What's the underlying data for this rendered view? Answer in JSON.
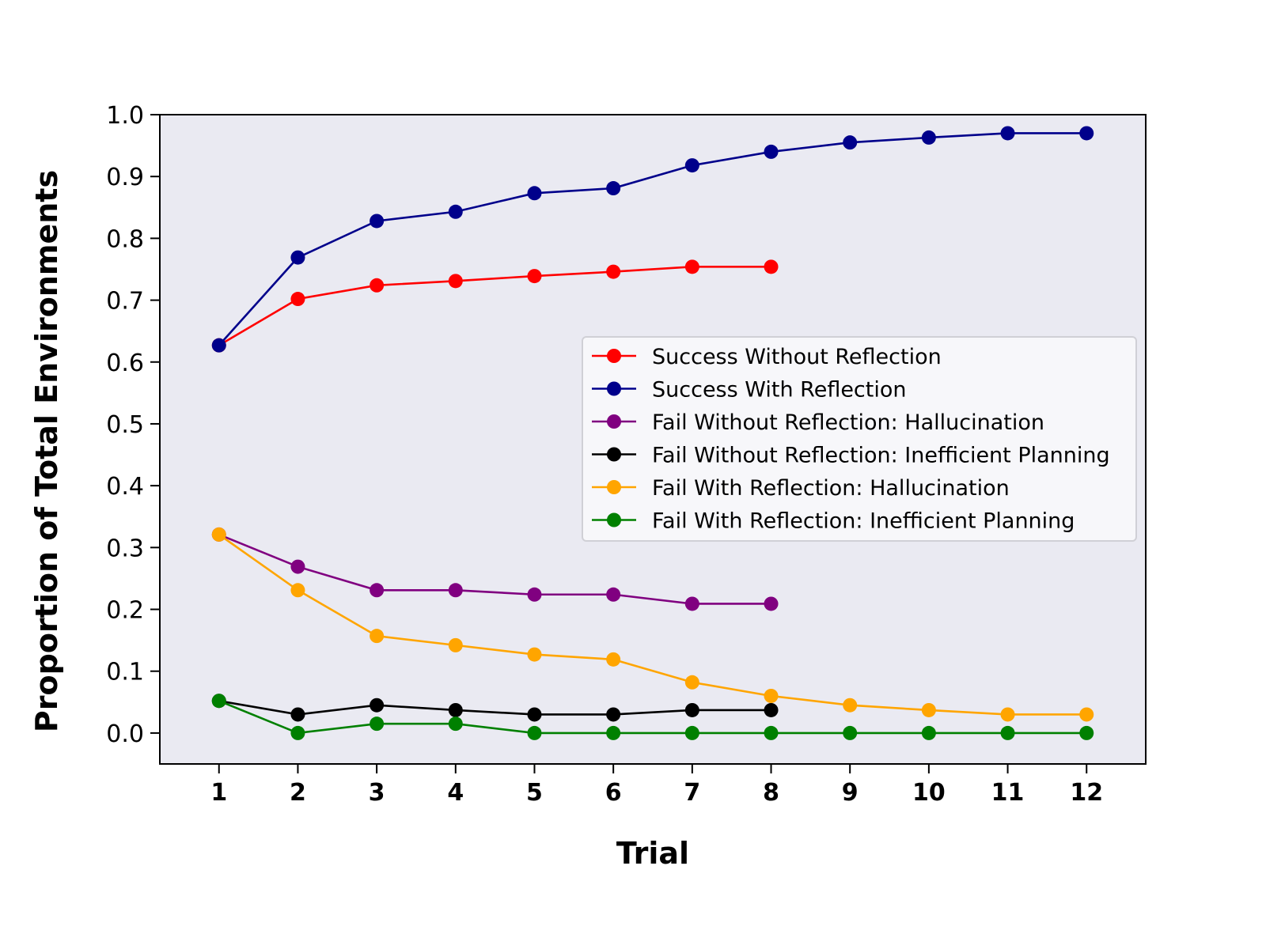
{
  "chart_data": {
    "type": "line",
    "title": "",
    "xlabel": "Trial",
    "ylabel": "Proportion of Total Environments",
    "x_ticks": [
      "1",
      "2",
      "3",
      "4",
      "5",
      "6",
      "7",
      "8",
      "9",
      "10",
      "11",
      "12"
    ],
    "y_ticks": [
      "0.0",
      "0.1",
      "0.2",
      "0.3",
      "0.4",
      "0.5",
      "0.6",
      "0.7",
      "0.8",
      "0.9",
      "1.0"
    ],
    "xlim": [
      0.25,
      12.75
    ],
    "ylim": [
      -0.05,
      1.0
    ],
    "grid": false,
    "background": "#eaeaf2",
    "legend_position": "center-right",
    "series": [
      {
        "name": "Success Without Reflection",
        "color": "#ff0000",
        "x": [
          1,
          2,
          3,
          4,
          5,
          6,
          7,
          8
        ],
        "y": [
          0.627,
          0.702,
          0.724,
          0.731,
          0.739,
          0.746,
          0.754,
          0.754
        ]
      },
      {
        "name": "Success With Reflection",
        "color": "#00008b",
        "x": [
          1,
          2,
          3,
          4,
          5,
          6,
          7,
          8,
          9,
          10,
          11,
          12
        ],
        "y": [
          0.627,
          0.769,
          0.828,
          0.843,
          0.873,
          0.881,
          0.918,
          0.94,
          0.955,
          0.963,
          0.97,
          0.97
        ]
      },
      {
        "name": "Fail Without Reflection: Hallucination",
        "color": "#800080",
        "x": [
          1,
          2,
          3,
          4,
          5,
          6,
          7,
          8
        ],
        "y": [
          0.321,
          0.269,
          0.231,
          0.231,
          0.224,
          0.224,
          0.209,
          0.209
        ]
      },
      {
        "name": "Fail Without Reflection: Inefficient Planning",
        "color": "#000000",
        "x": [
          1,
          2,
          3,
          4,
          5,
          6,
          7,
          8
        ],
        "y": [
          0.052,
          0.03,
          0.045,
          0.037,
          0.03,
          0.03,
          0.037,
          0.037
        ]
      },
      {
        "name": "Fail With Reflection: Hallucination",
        "color": "#ffa500",
        "x": [
          1,
          2,
          3,
          4,
          5,
          6,
          7,
          8,
          9,
          10,
          11,
          12
        ],
        "y": [
          0.321,
          0.231,
          0.157,
          0.142,
          0.127,
          0.119,
          0.082,
          0.06,
          0.045,
          0.037,
          0.03,
          0.03
        ]
      },
      {
        "name": "Fail With Reflection: Inefficient Planning",
        "color": "#008000",
        "x": [
          1,
          2,
          3,
          4,
          5,
          6,
          7,
          8,
          9,
          10,
          11,
          12
        ],
        "y": [
          0.052,
          0.0,
          0.015,
          0.015,
          0.0,
          0.0,
          0.0,
          0.0,
          0.0,
          0.0,
          0.0,
          0.0
        ]
      }
    ]
  }
}
